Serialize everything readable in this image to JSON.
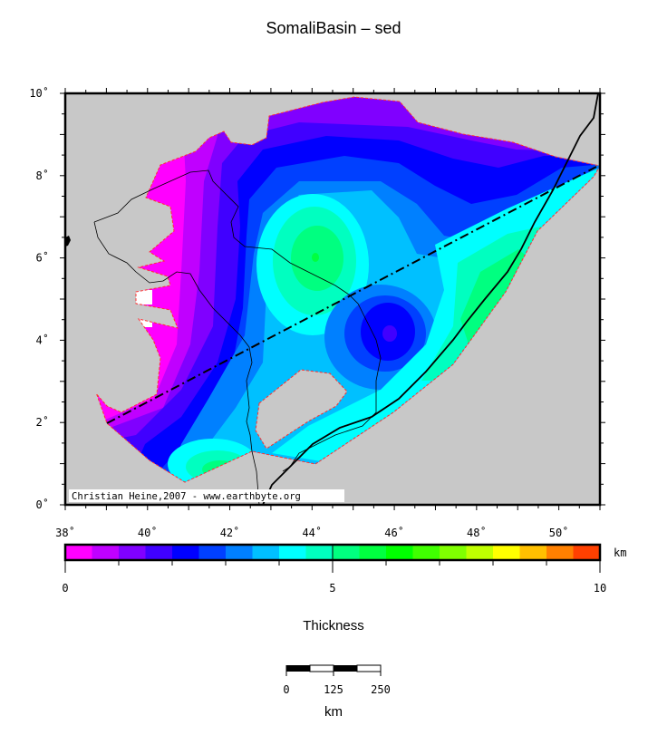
{
  "title": "SomaliBasin – sed",
  "map": {
    "lon_labels": [
      "38˚",
      "40˚",
      "42˚",
      "44˚",
      "46˚",
      "48˚",
      "50˚"
    ],
    "lon_values": [
      38,
      40,
      42,
      44,
      46,
      48,
      50
    ],
    "lat_labels": [
      "0˚",
      "2˚",
      "4˚",
      "6˚",
      "8˚",
      "10˚"
    ],
    "lat_values": [
      0,
      2,
      4,
      6,
      8,
      10
    ],
    "lon_range": [
      38,
      51
    ],
    "lat_range": [
      0,
      10
    ],
    "credit": "Christian Heine,2007 - www.earthbyte.org",
    "background_color": "#c8c8c8"
  },
  "colorbar": {
    "unit": "km",
    "range": [
      0,
      10
    ],
    "step": 0.5,
    "labels": [
      "0",
      "5",
      "10"
    ],
    "label_values": [
      0,
      5,
      10
    ],
    "colors": [
      "#ff00ff",
      "#c000ff",
      "#8000ff",
      "#4000ff",
      "#0000ff",
      "#0040ff",
      "#0080ff",
      "#00c0ff",
      "#00ffff",
      "#00ffc0",
      "#00ff80",
      "#00ff40",
      "#00ff00",
      "#40ff00",
      "#80ff00",
      "#c0ff00",
      "#ffff00",
      "#ffc000",
      "#ff8000",
      "#ff4000"
    ],
    "title": "Thickness"
  },
  "scalebar": {
    "labels": [
      "0",
      "125",
      "250"
    ],
    "unit": "km"
  }
}
